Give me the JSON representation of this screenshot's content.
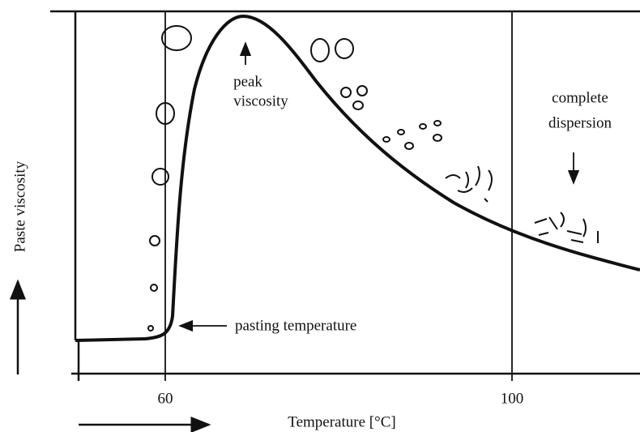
{
  "axis": {
    "y_label": "Paste viscosity",
    "x_label": "Temperature [°C]",
    "ticks": [
      "60",
      "100"
    ]
  },
  "annotations": {
    "peak": [
      "peak",
      "viscosity"
    ],
    "dispersion": [
      "complete",
      "dispersion"
    ],
    "pasting": "pasting temperature"
  }
}
